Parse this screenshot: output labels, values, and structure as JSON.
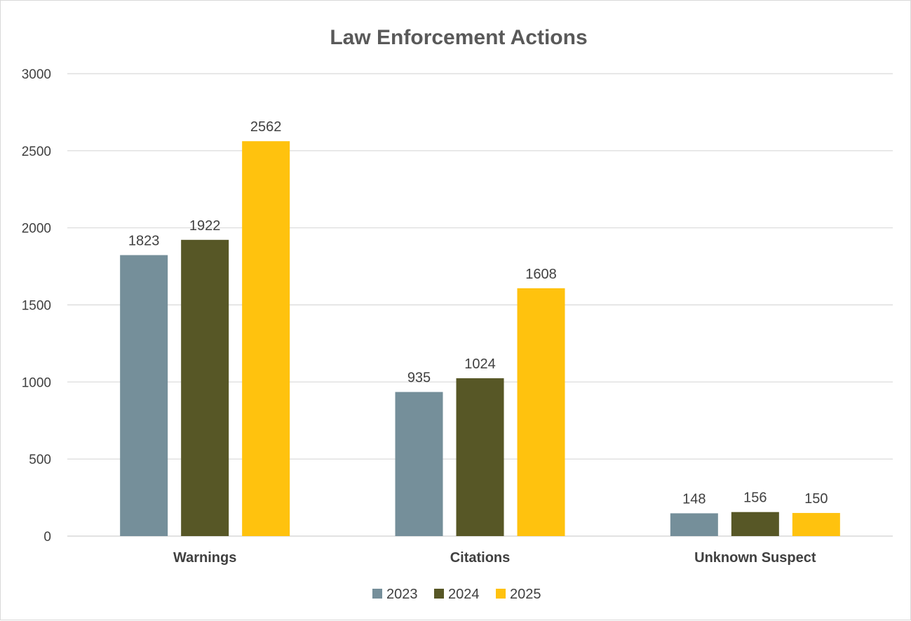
{
  "chart_data": {
    "type": "bar",
    "title": "Law Enforcement Actions",
    "xlabel": "",
    "ylabel": "",
    "categories": [
      "Warnings",
      "Citations",
      "Unknown Suspect"
    ],
    "series": [
      {
        "name": "2023",
        "values": [
          1823,
          935,
          148
        ],
        "color": "#758f9a"
      },
      {
        "name": "2024",
        "values": [
          1922,
          1024,
          156
        ],
        "color": "#575726"
      },
      {
        "name": "2025",
        "values": [
          2562,
          1608,
          150
        ],
        "color": "#ffc20e"
      }
    ],
    "ylim": [
      0,
      3000
    ],
    "yticks": [
      0,
      500,
      1000,
      1500,
      2000,
      2500,
      3000
    ],
    "grid": true,
    "data_labels": true,
    "legend_position": "bottom"
  }
}
